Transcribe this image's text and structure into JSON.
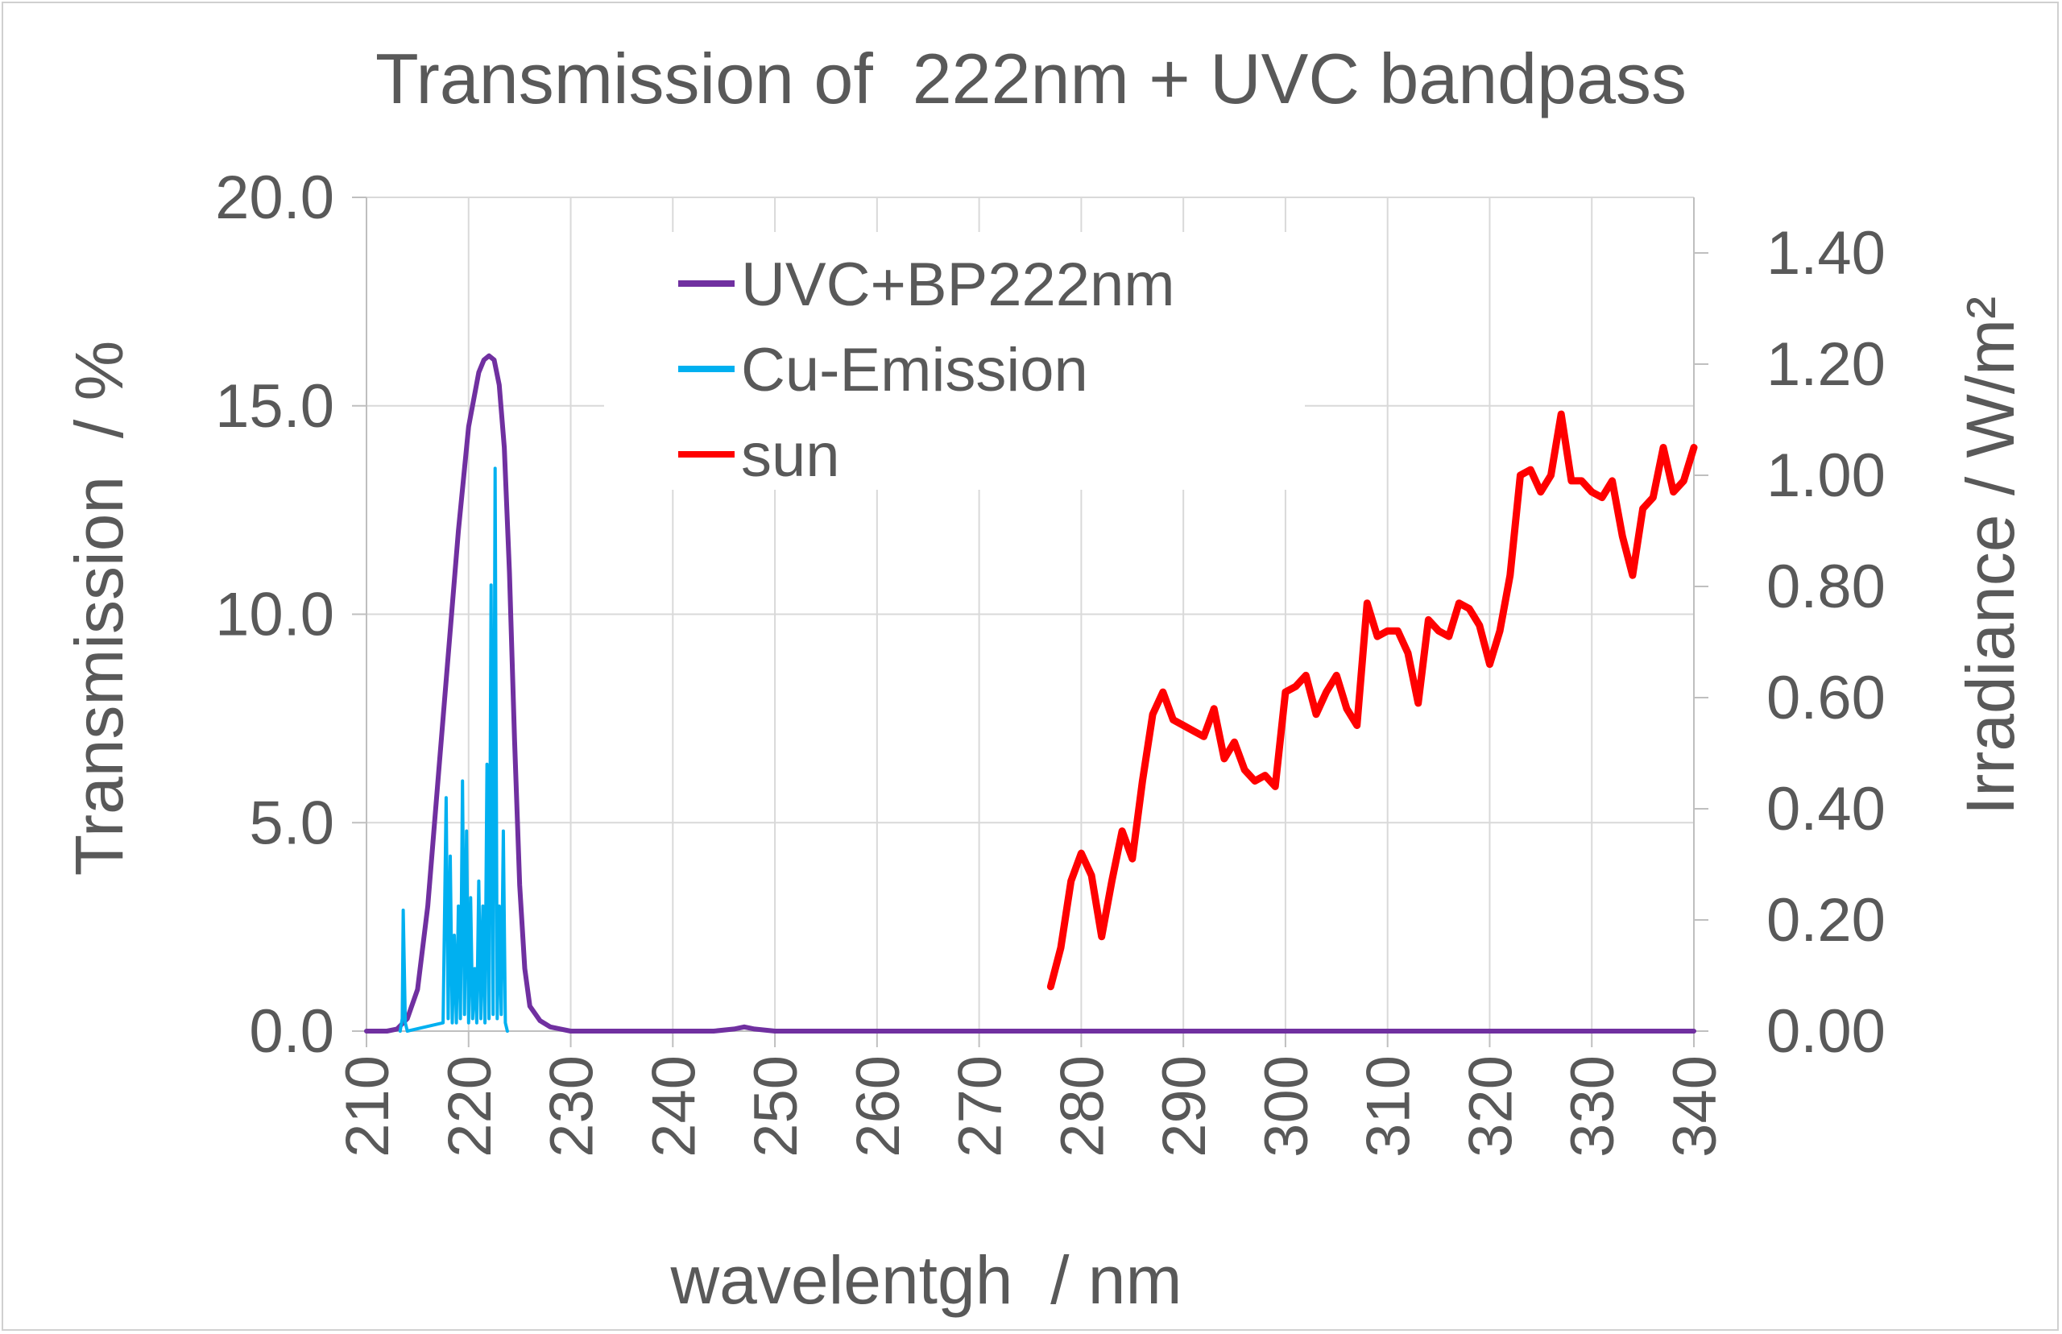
{
  "chart_data": {
    "type": "line",
    "title": "Transmission of  222nm + UVC bandpass",
    "xlabel": "wavelentgh  / nm",
    "ylabel": "Transmission  / %",
    "y2label": "Irradiance / W/m²",
    "xlim": [
      210,
      340
    ],
    "ylim": [
      0,
      20
    ],
    "y2lim": [
      0,
      1.5
    ],
    "x_ticks": [
      "210",
      "220",
      "230",
      "240",
      "250",
      "260",
      "270",
      "280",
      "290",
      "300",
      "310",
      "320",
      "330",
      "340"
    ],
    "y_ticks": [
      "0.0",
      "5.0",
      "10.0",
      "15.0",
      "20.0"
    ],
    "y2_ticks": [
      "0.00",
      "0.20",
      "0.40",
      "0.60",
      "0.80",
      "1.00",
      "1.20",
      "1.40"
    ],
    "grid": true,
    "legend_position": "top-center",
    "series": [
      {
        "name": "UVC+BP222nm",
        "axis": "left",
        "color": "#7030a0",
        "x": [
          210,
          212,
          213,
          214,
          215,
          216,
          217,
          218,
          219,
          220,
          221,
          221.5,
          222,
          222.5,
          223,
          223.5,
          224,
          224.5,
          225,
          225.5,
          226,
          227,
          228,
          229,
          230,
          235,
          240,
          244,
          246,
          247,
          248,
          250,
          260,
          270,
          280,
          290,
          300,
          310,
          320,
          330,
          340
        ],
        "y": [
          0.0,
          0.0,
          0.05,
          0.3,
          1.0,
          3.0,
          6.0,
          9.0,
          12.0,
          14.5,
          15.8,
          16.1,
          16.2,
          16.1,
          15.5,
          14.0,
          11.0,
          7.0,
          3.5,
          1.5,
          0.6,
          0.25,
          0.1,
          0.05,
          0.0,
          0.0,
          0.0,
          0.0,
          0.05,
          0.1,
          0.05,
          0.0,
          0.0,
          0.0,
          0.0,
          0.0,
          0.0,
          0.0,
          0.0,
          0.0,
          0.0
        ]
      },
      {
        "name": "Cu-Emission",
        "axis": "left",
        "color": "#00b0f0",
        "x": [
          213.3,
          213.5,
          213.6,
          213.8,
          214.0,
          217.5,
          217.8,
          218.0,
          218.2,
          218.4,
          218.6,
          218.8,
          219.0,
          219.2,
          219.4,
          219.6,
          219.8,
          220.0,
          220.2,
          220.4,
          220.6,
          220.8,
          221.0,
          221.2,
          221.4,
          221.6,
          221.8,
          222.0,
          222.2,
          222.4,
          222.6,
          222.8,
          223.0,
          223.2,
          223.4,
          223.6,
          223.8
        ],
        "y": [
          0.0,
          0.3,
          2.9,
          0.2,
          0.0,
          0.2,
          5.6,
          0.3,
          4.2,
          0.2,
          2.3,
          0.2,
          3.0,
          0.3,
          6.0,
          0.4,
          4.8,
          0.2,
          3.2,
          0.3,
          1.5,
          0.2,
          3.6,
          0.3,
          3.0,
          0.2,
          6.4,
          0.3,
          10.7,
          0.4,
          13.5,
          0.3,
          3.0,
          0.4,
          4.8,
          0.2,
          0.0
        ]
      },
      {
        "name": "sun",
        "axis": "right",
        "color": "#ff0000",
        "x": [
          277,
          278,
          279,
          280,
          281,
          282,
          283,
          284,
          285,
          286,
          287,
          288,
          289,
          290,
          291,
          292,
          293,
          294,
          295,
          296,
          297,
          298,
          299,
          300,
          301,
          302,
          303,
          304,
          305,
          306,
          307,
          308,
          309,
          310,
          311,
          312,
          313,
          314,
          315,
          316,
          317,
          318,
          319,
          320,
          321,
          322,
          323,
          324,
          325,
          326,
          327,
          328,
          329,
          330,
          331,
          332,
          333,
          334,
          335,
          336,
          337,
          338,
          339,
          340
        ],
        "y": [
          0.08,
          0.15,
          0.27,
          0.32,
          0.28,
          0.17,
          0.27,
          0.36,
          0.31,
          0.45,
          0.57,
          0.61,
          0.56,
          0.55,
          0.54,
          0.53,
          0.58,
          0.49,
          0.52,
          0.47,
          0.45,
          0.46,
          0.44,
          0.61,
          0.62,
          0.64,
          0.57,
          0.61,
          0.64,
          0.58,
          0.55,
          0.77,
          0.71,
          0.72,
          0.72,
          0.68,
          0.59,
          0.74,
          0.72,
          0.71,
          0.77,
          0.76,
          0.73,
          0.66,
          0.72,
          0.82,
          1.0,
          1.01,
          0.97,
          1.0,
          1.11,
          0.99,
          0.99,
          0.97,
          0.96,
          0.99,
          0.89,
          0.82,
          0.94,
          0.96,
          1.05,
          0.97,
          0.99,
          1.05
        ]
      }
    ]
  }
}
